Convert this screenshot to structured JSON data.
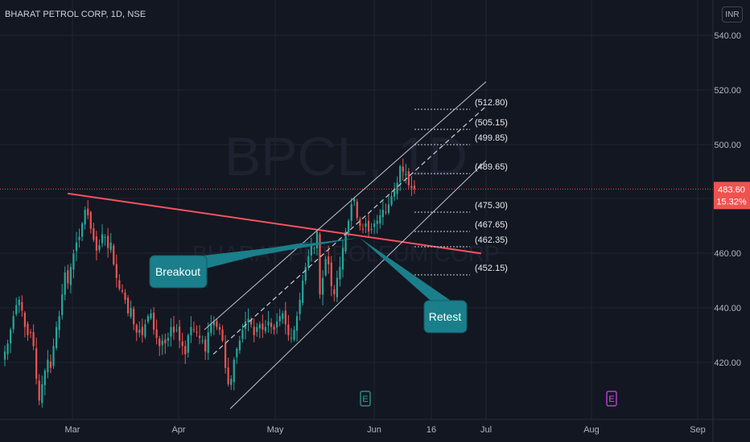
{
  "header": {
    "title": "BHARAT PETROL CORP, 1D, NSE",
    "currency": "INR"
  },
  "watermark": {
    "symbol": "BPCL, 1D",
    "name": "BHARAT PETROLEUM CORP"
  },
  "price_tag": {
    "price": "483.60",
    "change": "15.32%"
  },
  "callouts": [
    {
      "text": "Breakout"
    },
    {
      "text": "Retest"
    }
  ],
  "fib_labels": [
    "(512.80)",
    "(505.15)",
    "(499.85)",
    "(489.65)",
    "(475.30)",
    "(467.65)",
    "(462.35)",
    "(452.15)"
  ],
  "event_markers": [
    {
      "label": "E",
      "color": "#26a69a",
      "date": "Jun"
    },
    {
      "label": "E",
      "color": "#e040fb",
      "date": "Aug"
    }
  ],
  "colors": {
    "background": "#131722",
    "up": "#26a69a",
    "down": "#ef5350",
    "trendline": "#f7525f",
    "channel": "#c0c3cc",
    "callout": "#1a7f8a",
    "grid": "#1f2433",
    "axis_text": "#b2b5be"
  },
  "chart_data": {
    "type": "candlestick",
    "title": "BHARAT PETROL CORP, 1D, NSE",
    "y_axis": {
      "ticks": [
        "540.00",
        "520.00",
        "500.00",
        "480.00",
        "460.00",
        "440.00",
        "420.00"
      ],
      "range": [
        403,
        547
      ]
    },
    "x_axis": {
      "ticks": [
        "Mar",
        "Apr",
        "May",
        "Jun",
        "16",
        "Jul",
        "Aug",
        "Sep"
      ]
    },
    "grid": true,
    "last_price": 483.6,
    "change_pct": 15.32,
    "closes": [
      424,
      427,
      432,
      437,
      441,
      443,
      439,
      433,
      430,
      431,
      426,
      414,
      406,
      412,
      417,
      421,
      418,
      426,
      433,
      437,
      445,
      453,
      449,
      455,
      460,
      464,
      466,
      471,
      476,
      474,
      469,
      465,
      461,
      463,
      467,
      466,
      462,
      464,
      456,
      451,
      447,
      446,
      443,
      438,
      440,
      434,
      431,
      432,
      430,
      434,
      437,
      438,
      432,
      429,
      426,
      428,
      427,
      429,
      433,
      431,
      432,
      428,
      426,
      423,
      430,
      433,
      432,
      431,
      429,
      428,
      424,
      431,
      434,
      435,
      433,
      432,
      428,
      418,
      412,
      414,
      421,
      425,
      428,
      432,
      435,
      436,
      434,
      430,
      433,
      434,
      432,
      433,
      435,
      433,
      432,
      435,
      437,
      438,
      434,
      430,
      429,
      432,
      437,
      443,
      450,
      455,
      459,
      463,
      462,
      468,
      445,
      451,
      458,
      456,
      448,
      445,
      451,
      455,
      462,
      468,
      472,
      478,
      480,
      473,
      470,
      469,
      471,
      468,
      469,
      471,
      472,
      474,
      476,
      475,
      478,
      481,
      483,
      486,
      492,
      490,
      489,
      485,
      484,
      483.6
    ],
    "overlays": {
      "descending_trendline": [
        [
          0,
          482
        ],
        [
          1,
          460
        ]
      ],
      "channel_upper": [
        [
          0,
          432
        ],
        [
          1,
          523
        ]
      ],
      "channel_mid_dashed": [
        [
          0,
          423
        ],
        [
          1,
          514
        ]
      ],
      "channel_lower": [
        [
          0,
          403
        ],
        [
          1,
          494
        ]
      ],
      "price_line": 483.6
    }
  }
}
